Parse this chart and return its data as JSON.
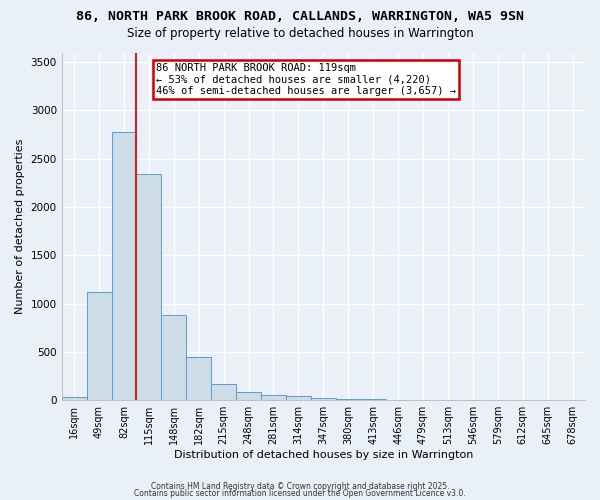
{
  "title1": "86, NORTH PARK BROOK ROAD, CALLANDS, WARRINGTON, WA5 9SN",
  "title2": "Size of property relative to detached houses in Warrington",
  "xlabel": "Distribution of detached houses by size in Warrington",
  "ylabel": "Number of detached properties",
  "bar_values": [
    30,
    1120,
    2780,
    2340,
    880,
    450,
    165,
    90,
    55,
    40,
    25,
    15,
    10,
    5,
    3,
    2,
    2,
    1,
    1,
    0,
    0
  ],
  "bin_labels": [
    "16sqm",
    "49sqm",
    "82sqm",
    "115sqm",
    "148sqm",
    "182sqm",
    "215sqm",
    "248sqm",
    "281sqm",
    "314sqm",
    "347sqm",
    "380sqm",
    "413sqm",
    "446sqm",
    "479sqm",
    "513sqm",
    "546sqm",
    "579sqm",
    "612sqm",
    "645sqm",
    "678sqm"
  ],
  "bar_color": "#ccdde8",
  "bar_edge_color": "#5b9bd5",
  "vline_x_idx": 2,
  "vline_color": "#cc2222",
  "annotation_box_text": "86 NORTH PARK BROOK ROAD: 119sqm\n← 53% of detached houses are smaller (4,220)\n46% of semi-detached houses are larger (3,657) →",
  "annotation_box_color": "#ffffff",
  "annotation_box_edge_color": "#cc0000",
  "ylim": [
    0,
    3600
  ],
  "yticks": [
    0,
    500,
    1000,
    1500,
    2000,
    2500,
    3000,
    3500
  ],
  "bg_color": "#eaf0f8",
  "grid_color": "#ffffff",
  "footer1": "Contains HM Land Registry data © Crown copyright and database right 2025.",
  "footer2": "Contains public sector information licensed under the Open Government Licence v3.0.",
  "title1_fontsize": 9.5,
  "title2_fontsize": 8.5,
  "tick_fontsize": 7,
  "ylabel_fontsize": 8,
  "xlabel_fontsize": 8,
  "footer_fontsize": 5.5
}
